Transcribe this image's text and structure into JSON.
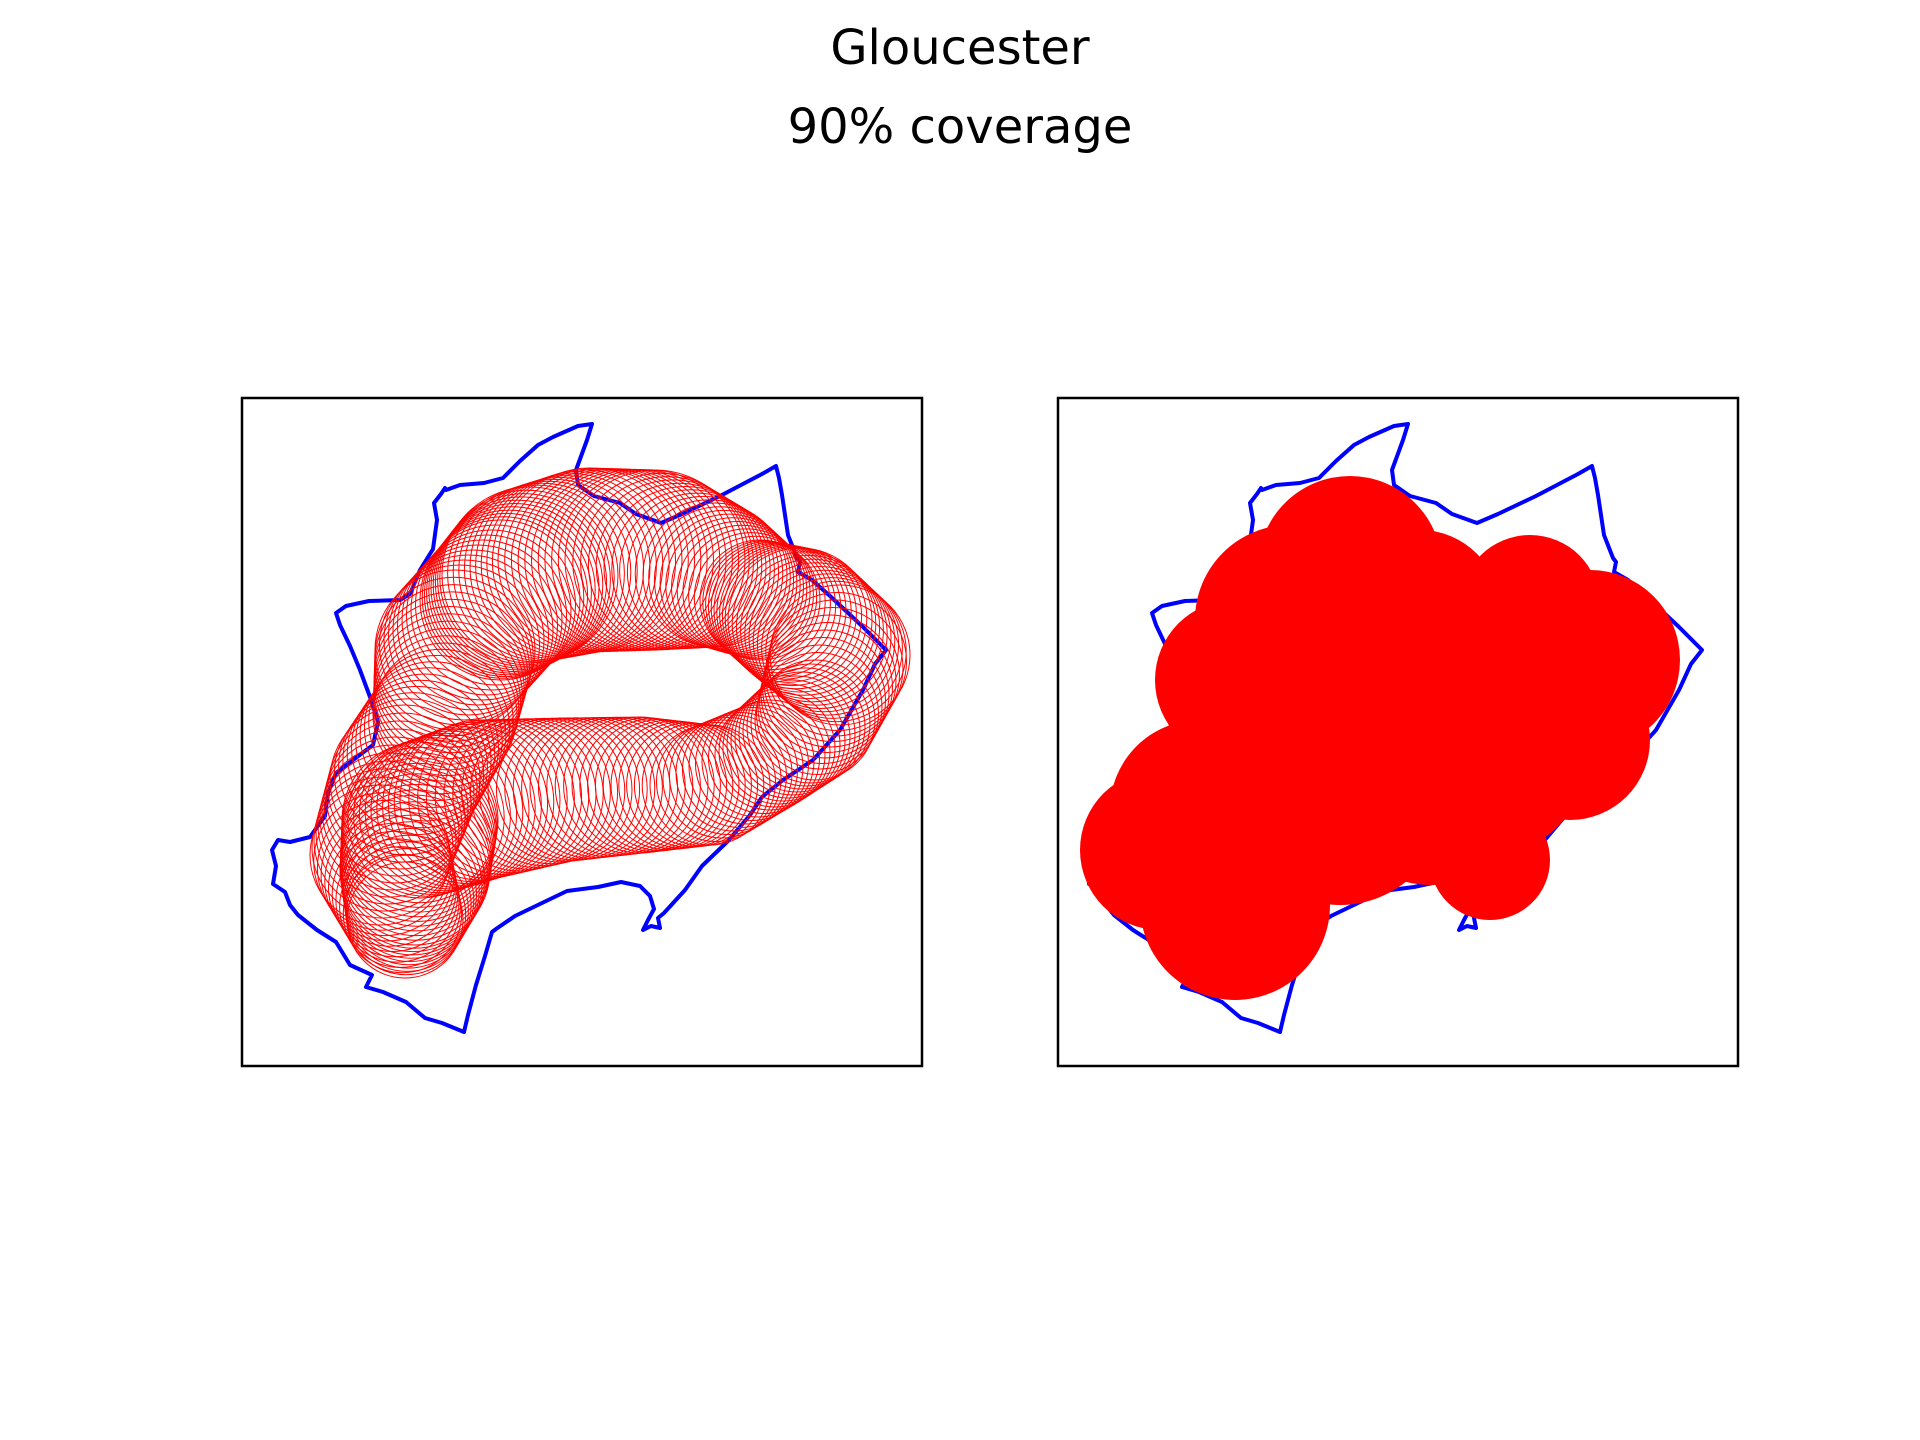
{
  "figure": {
    "title": "Gloucester",
    "subtitle": "90% coverage"
  },
  "colors": {
    "boundary": "#0000ff",
    "coverage": "#ff0000",
    "frame": "#000000",
    "background": "#ffffff"
  },
  "panels": [
    {
      "name": "circles-outline",
      "style": "outline"
    },
    {
      "name": "circles-filled",
      "style": "filled"
    }
  ]
}
